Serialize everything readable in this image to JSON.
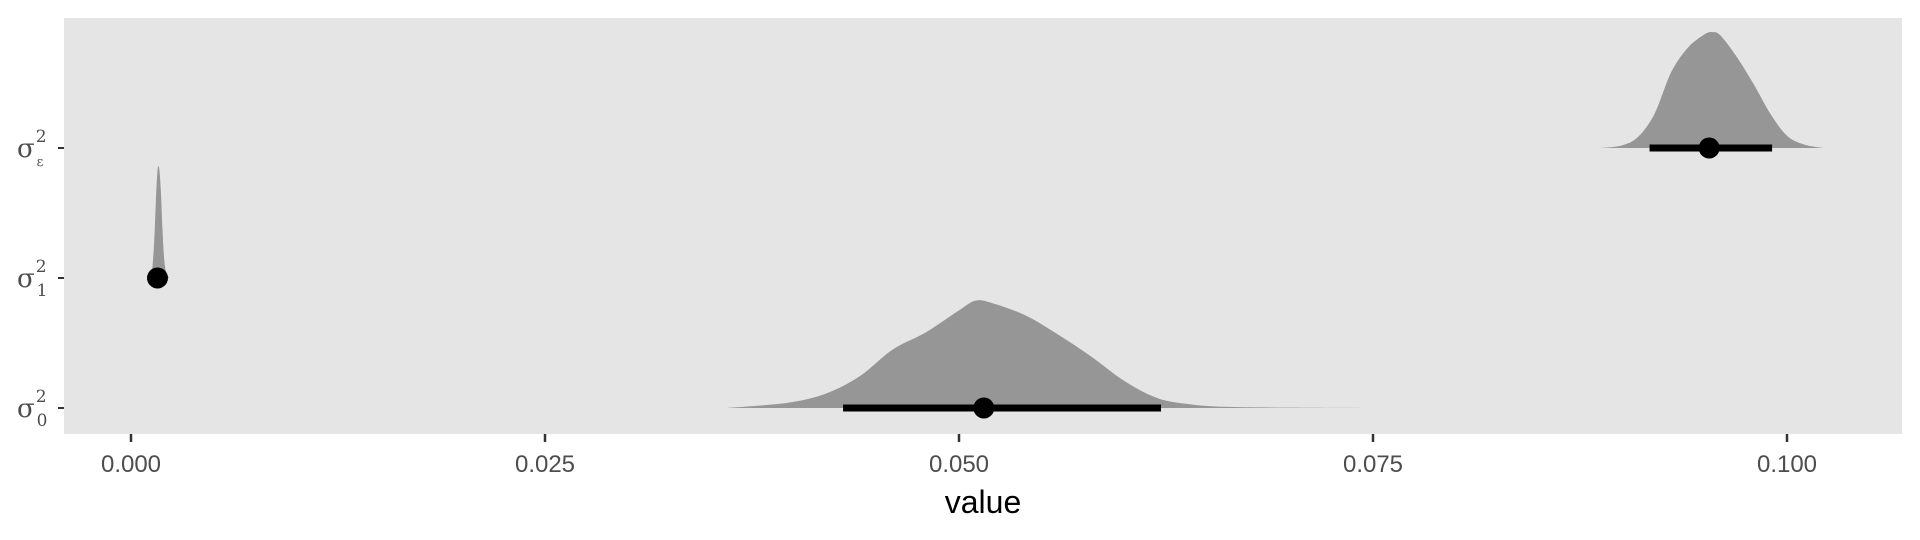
{
  "chart_data": {
    "type": "halfeye",
    "xlabel": "value",
    "ylabel": "",
    "xlim": [
      -0.004,
      0.107
    ],
    "x_ticks": [
      0.0,
      0.025,
      0.05,
      0.075,
      0.1
    ],
    "x_tick_labels": [
      "0.000",
      "0.025",
      "0.050",
      "0.075",
      "0.100"
    ],
    "grid": false,
    "colors": {
      "panel": "#e5e5e5",
      "density": "#969696",
      "interval": "#000000"
    },
    "series": [
      {
        "base": "σ",
        "sup": "2",
        "sub": "0",
        "point": 0.0515,
        "interval": [
          0.043,
          0.0622
        ],
        "density": {
          "x": [
            0.036,
            0.038,
            0.04,
            0.042,
            0.044,
            0.046,
            0.048,
            0.05,
            0.051,
            0.052,
            0.054,
            0.056,
            0.058,
            0.06,
            0.062,
            0.064,
            0.066,
            0.07,
            0.075
          ],
          "y": [
            0.0,
            0.02,
            0.05,
            0.12,
            0.26,
            0.48,
            0.62,
            0.8,
            0.88,
            0.86,
            0.76,
            0.6,
            0.42,
            0.22,
            0.08,
            0.03,
            0.01,
            0.003,
            0.0
          ]
        }
      },
      {
        "base": "σ",
        "sup": "2",
        "sub": "1",
        "point": 0.0016,
        "interval": [
          0.0013,
          0.0019
        ],
        "density": {
          "x": [
            0.0012,
            0.0013,
            0.0014,
            0.0015,
            0.0016,
            0.0017,
            0.0018,
            0.0019,
            0.002,
            0.0021,
            0.0022,
            0.0023
          ],
          "y": [
            0.0,
            0.1,
            0.3,
            0.62,
            0.88,
            0.9,
            0.72,
            0.4,
            0.16,
            0.06,
            0.02,
            0.0
          ]
        }
      },
      {
        "base": "σ",
        "sup": "2",
        "sub": "ε",
        "point": 0.0953,
        "interval": [
          0.0917,
          0.0991
        ],
        "density": {
          "x": [
            0.0888,
            0.09,
            0.091,
            0.092,
            0.093,
            0.094,
            0.095,
            0.0955,
            0.096,
            0.097,
            0.098,
            0.099,
            0.1,
            0.101,
            0.1022
          ],
          "y": [
            0.0,
            0.02,
            0.09,
            0.28,
            0.62,
            0.82,
            0.93,
            0.95,
            0.92,
            0.74,
            0.52,
            0.28,
            0.1,
            0.03,
            0.0
          ]
        }
      }
    ]
  }
}
